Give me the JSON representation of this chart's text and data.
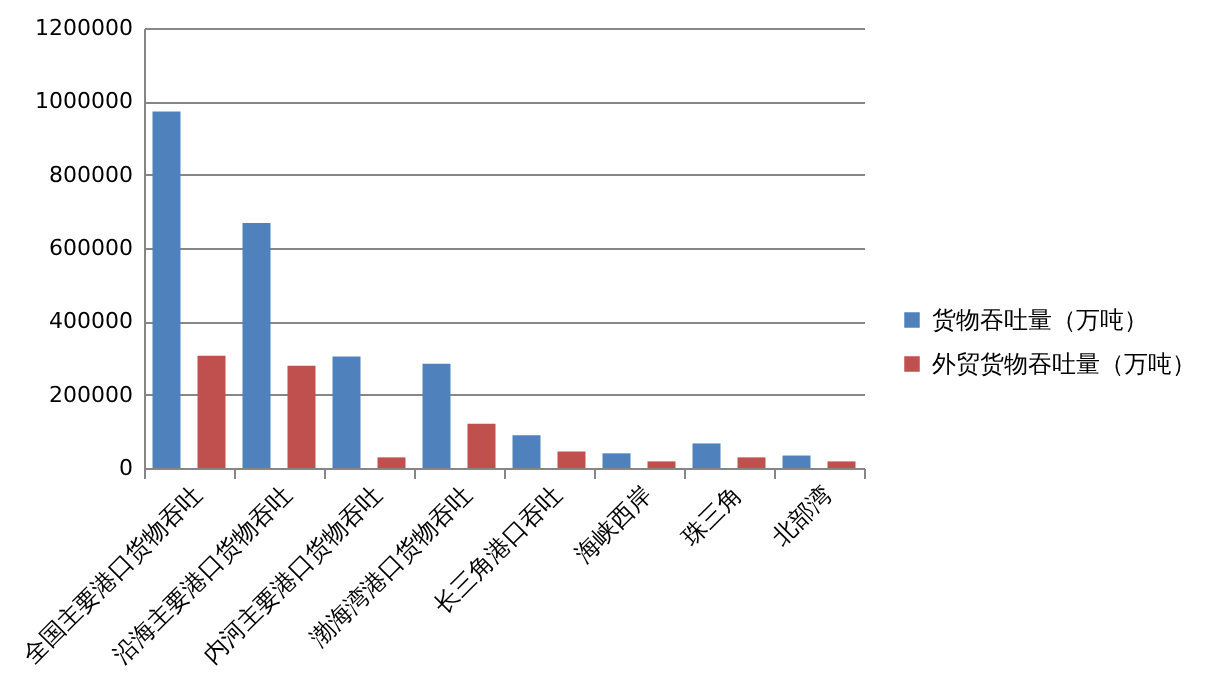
{
  "chart_data": {
    "type": "bar",
    "categories": [
      "全国主要港口货物吞吐",
      "沿海主要港口货物吞吐",
      "内河主要港口货物吞吐",
      "渤海湾港口货物吞吐",
      "长三角港口吞吐",
      "海峡西岸",
      "珠三角",
      "北部湾"
    ],
    "series": [
      {
        "name": "货物吞吐量（万吨）",
        "color": "#4f81bd",
        "values": [
          972000,
          668000,
          304000,
          284000,
          89000,
          40000,
          67000,
          34000
        ]
      },
      {
        "name": "外贸货物吞吐量（万吨）",
        "color": "#c0504d",
        "values": [
          306000,
          279000,
          29000,
          121000,
          45000,
          18000,
          29000,
          18000
        ]
      }
    ],
    "ylim": [
      0,
      1200000
    ],
    "yticks": [
      0,
      200000,
      400000,
      600000,
      800000,
      1000000,
      1200000
    ],
    "grid": "y",
    "legend": "right"
  }
}
